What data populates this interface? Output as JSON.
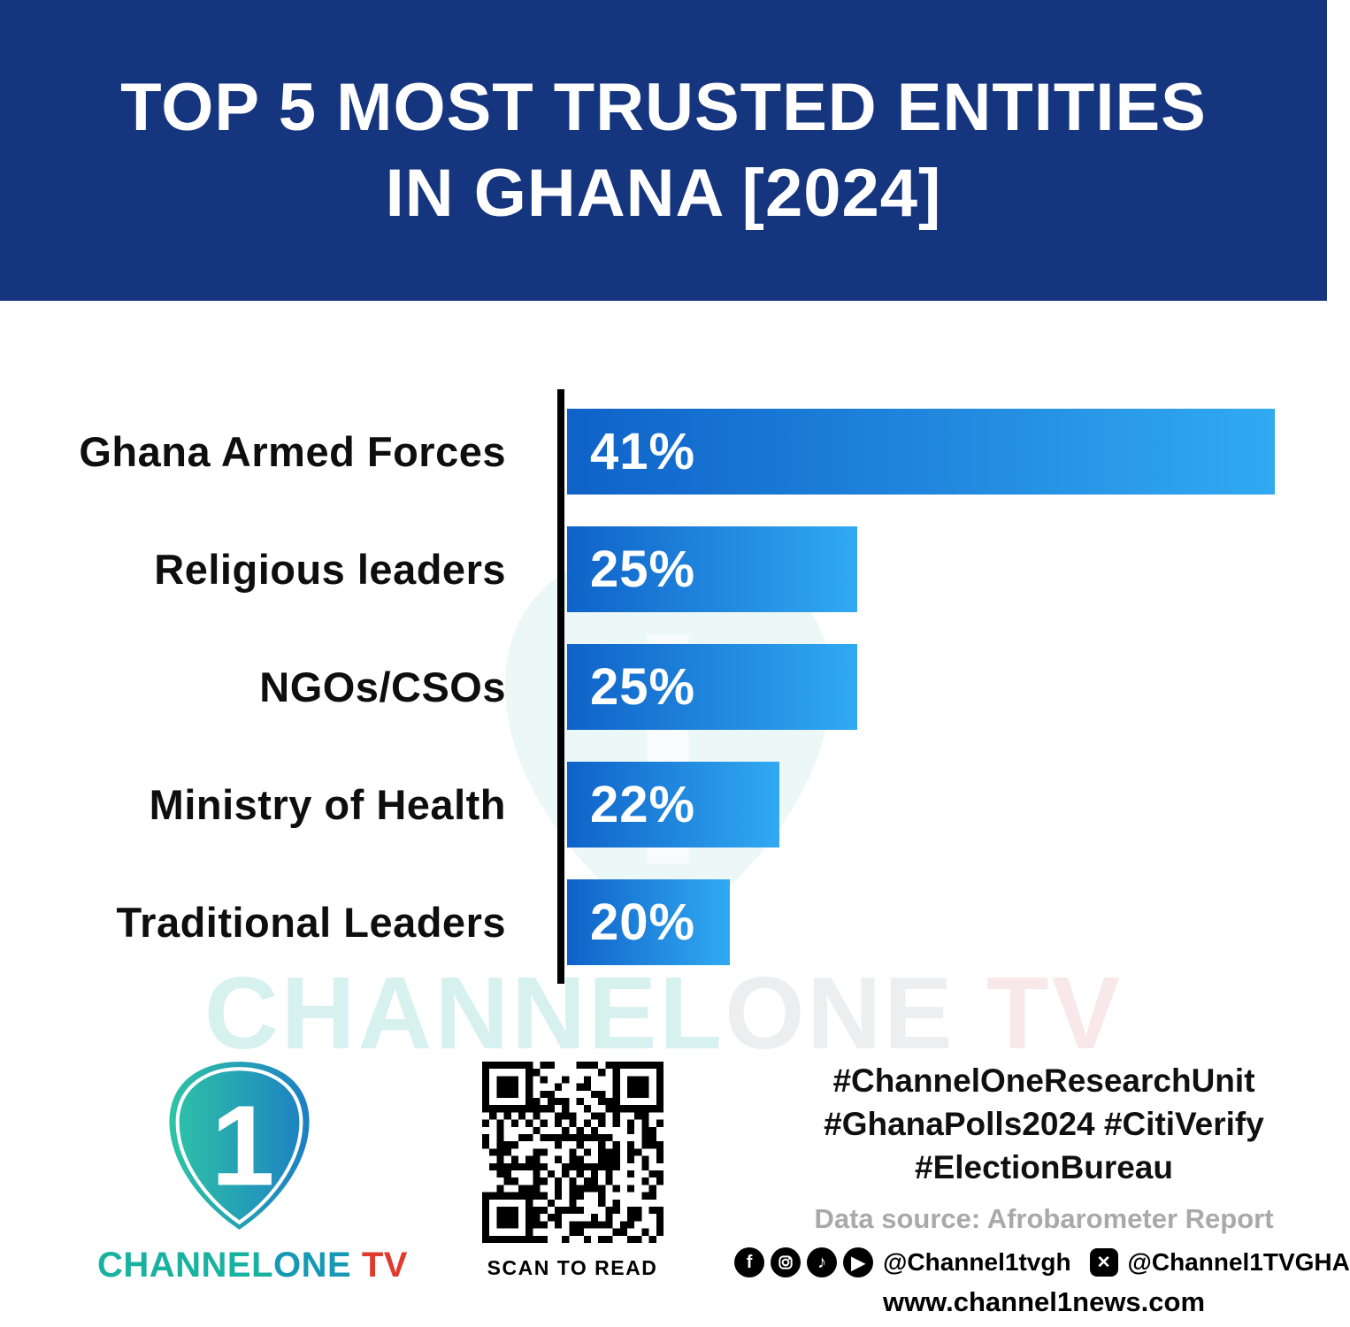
{
  "header": {
    "title_line1": "TOP 5 MOST TRUSTED ENTITIES",
    "title_line2": "IN GHANA [2024]"
  },
  "chart_data": {
    "type": "bar",
    "orientation": "horizontal",
    "title": "Top 5 Most Trusted Entities in Ghana [2024]",
    "categories": [
      "Ghana Armed Forces",
      "Religious leaders",
      "NGOs/CSOs",
      "Ministry of Health",
      "Traditional Leaders"
    ],
    "values": [
      41,
      25,
      25,
      22,
      20
    ],
    "value_labels": [
      "41%",
      "25%",
      "25%",
      "22%",
      "20%"
    ],
    "unit": "%",
    "xlim": [
      0,
      41
    ],
    "grid": false,
    "legend": false,
    "bar_pixel_widths": [
      800,
      328,
      328,
      240,
      184
    ],
    "bar_gradient": [
      "#0f62c8",
      "#31aaf2"
    ]
  },
  "watermark": {
    "part1": "CHANNEL",
    "part2": "ONE",
    "part3": " TV"
  },
  "footer": {
    "logo": {
      "number": "1",
      "brand_part1": "CHANNEL",
      "brand_part2": "ONE",
      "brand_part3": " TV"
    },
    "qr_caption": "SCAN TO READ",
    "hashtags": [
      "#ChannelOneResearchUnit",
      "#GhanaPolls2024 #CitiVerify",
      "#ElectionBureau"
    ],
    "source": "Data source: Afrobarometer Report",
    "social": {
      "handle1": "@Channel1tvgh",
      "handle2": "@Channel1TVGHA"
    },
    "website": "www.channel1news.com"
  },
  "colors": {
    "header_bg": "#16357f",
    "bar_start": "#0f62c8",
    "bar_end": "#31aaf2",
    "brand_teal": "#18b2a0",
    "tv_red": "#e03a2f"
  }
}
